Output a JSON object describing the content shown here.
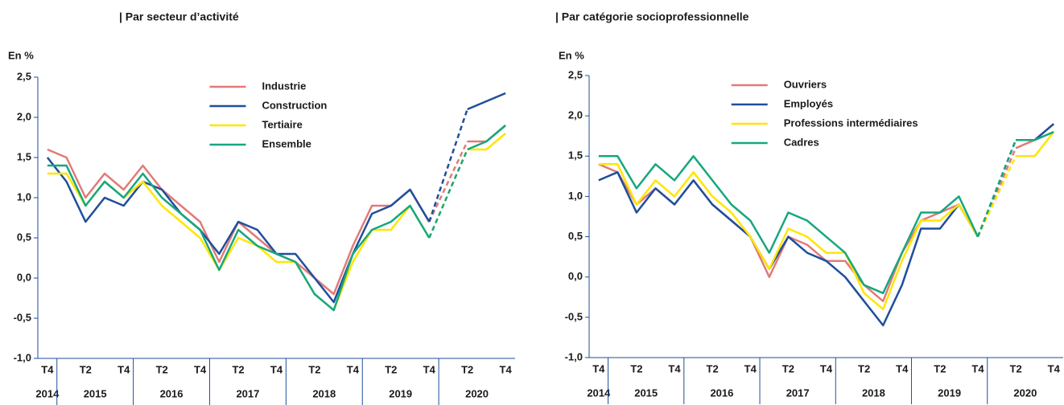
{
  "chart_data": [
    {
      "type": "line",
      "title": "| Par secteur d’activité",
      "y_label": "En %",
      "categories": [
        "T4",
        null,
        "T2",
        null,
        "T4",
        null,
        "T2",
        null,
        "T4",
        null,
        "T2",
        null,
        "T4",
        null,
        "T2",
        null,
        "T4",
        null,
        "T2",
        null,
        "T4",
        null,
        "T2",
        null,
        "T4"
      ],
      "x_groups": [
        "2014",
        "2015",
        "2016",
        "2017",
        "2018",
        "2019",
        "2020"
      ],
      "ylim": [
        -1,
        2.5
      ],
      "yticks": [
        {
          "value": -1,
          "label": "-1,0"
        },
        {
          "value": -0.5,
          "label": "-0,5"
        },
        {
          "value": 0,
          "label": "0,0"
        },
        {
          "value": 0.5,
          "label": "0,5"
        },
        {
          "value": 1,
          "label": "1,0"
        },
        {
          "value": 1.5,
          "label": "1,5"
        },
        {
          "value": 2,
          "label": "2,0"
        },
        {
          "value": 2.5,
          "label": "2,5"
        }
      ],
      "legend": "upper center",
      "series": [
        {
          "name": "Industrie",
          "color": "#e07b78",
          "values": [
            1.6,
            1.5,
            1.0,
            1.3,
            1.1,
            1.4,
            1.1,
            0.9,
            0.7,
            0.2,
            0.7,
            0.5,
            0.3,
            0.2,
            0.0,
            -0.2,
            0.4,
            0.9,
            0.9,
            1.1,
            0.7,
            null,
            1.7,
            1.7,
            1.9
          ]
        },
        {
          "name": "Construction",
          "color": "#1f4e9c",
          "values": [
            1.5,
            1.2,
            0.7,
            1.0,
            0.9,
            1.2,
            1.1,
            0.8,
            0.6,
            0.3,
            0.7,
            0.6,
            0.3,
            0.3,
            0.0,
            -0.3,
            0.3,
            0.8,
            0.9,
            1.1,
            0.7,
            null,
            2.1,
            2.2,
            2.3
          ]
        },
        {
          "name": "Tertiaire",
          "color": "#ffe600",
          "values": [
            1.3,
            1.3,
            0.9,
            1.2,
            1.0,
            1.2,
            0.9,
            0.7,
            0.5,
            0.1,
            0.5,
            0.4,
            0.2,
            0.2,
            -0.2,
            -0.4,
            0.2,
            0.6,
            0.6,
            0.9,
            0.5,
            null,
            1.6,
            1.6,
            1.8
          ]
        },
        {
          "name": "Ensemble",
          "color": "#16a77f",
          "values": [
            1.4,
            1.4,
            0.9,
            1.2,
            1.0,
            1.3,
            1.0,
            0.8,
            0.6,
            0.1,
            0.6,
            0.4,
            0.3,
            0.2,
            -0.2,
            -0.4,
            0.3,
            0.6,
            0.7,
            0.9,
            0.5,
            null,
            1.6,
            1.7,
            1.9
          ]
        }
      ]
    },
    {
      "type": "line",
      "title": "| Par catégorie socioprofessionnelle",
      "y_label": "En %",
      "categories": [
        "T4",
        null,
        "T2",
        null,
        "T4",
        null,
        "T2",
        null,
        "T4",
        null,
        "T2",
        null,
        "T4",
        null,
        "T2",
        null,
        "T4",
        null,
        "T2",
        null,
        "T4",
        null,
        "T2",
        null,
        "T4"
      ],
      "x_groups": [
        "2014",
        "2015",
        "2016",
        "2017",
        "2018",
        "2019",
        "2020"
      ],
      "ylim": [
        -1,
        2.5
      ],
      "yticks": [
        {
          "value": -1,
          "label": "-1,0"
        },
        {
          "value": -0.5,
          "label": "-0,5"
        },
        {
          "value": 0,
          "label": "0,0"
        },
        {
          "value": 0.5,
          "label": "0,5"
        },
        {
          "value": 1,
          "label": "1,0"
        },
        {
          "value": 1.5,
          "label": "1,5"
        },
        {
          "value": 2,
          "label": "2,0"
        },
        {
          "value": 2.5,
          "label": "2,5"
        }
      ],
      "legend": "upper center",
      "series": [
        {
          "name": "Ouvriers",
          "color": "#e07b78",
          "values": [
            1.4,
            1.3,
            0.9,
            1.1,
            0.9,
            1.2,
            0.9,
            0.7,
            0.5,
            0.0,
            0.5,
            0.4,
            0.2,
            0.2,
            -0.1,
            -0.3,
            0.3,
            0.7,
            0.8,
            0.9,
            0.5,
            null,
            1.6,
            1.7,
            1.9
          ]
        },
        {
          "name": "Employés",
          "color": "#1f4e9c",
          "values": [
            1.2,
            1.3,
            0.8,
            1.1,
            0.9,
            1.2,
            0.9,
            0.7,
            0.5,
            0.1,
            0.5,
            0.3,
            0.2,
            0.0,
            -0.3,
            -0.6,
            -0.1,
            0.6,
            0.6,
            0.9,
            0.5,
            null,
            1.7,
            1.7,
            1.9
          ]
        },
        {
          "name": "Professions intermédiaires",
          "color": "#ffe600",
          "values": [
            1.4,
            1.4,
            0.9,
            1.2,
            1.0,
            1.3,
            1.0,
            0.8,
            0.5,
            0.1,
            0.6,
            0.5,
            0.3,
            0.3,
            -0.2,
            -0.4,
            0.2,
            0.7,
            0.7,
            0.9,
            0.5,
            null,
            1.5,
            1.5,
            1.8
          ]
        },
        {
          "name": "Cadres",
          "color": "#16a77f",
          "values": [
            1.5,
            1.5,
            1.1,
            1.4,
            1.2,
            1.5,
            1.2,
            0.9,
            0.7,
            0.3,
            0.8,
            0.7,
            0.5,
            0.3,
            -0.1,
            -0.2,
            0.3,
            0.8,
            0.8,
            1.0,
            0.5,
            null,
            1.7,
            1.7,
            1.8
          ]
        }
      ]
    }
  ]
}
